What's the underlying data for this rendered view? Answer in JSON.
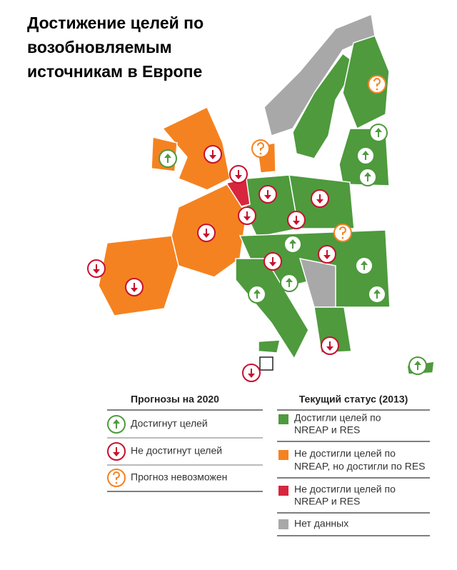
{
  "title": [
    "Достижение целей по",
    "возобновляемым",
    "источникам в Европе"
  ],
  "legend_forecast": {
    "title": "Прогнозы на 2020",
    "items": [
      "Достигнут целей",
      "Не достигнут целей",
      "Прогноз невозможен"
    ]
  },
  "legend_status": {
    "title": "Текущий статус (2013)",
    "items": [
      [
        "Достигли целей по",
        "NREAP и RES"
      ],
      [
        "Не достигли целей по",
        "NREAP, но достигли по RES"
      ],
      [
        "Не достигли целей по",
        "NREAP и RES"
      ],
      [
        "Нет данных"
      ]
    ]
  }
}
